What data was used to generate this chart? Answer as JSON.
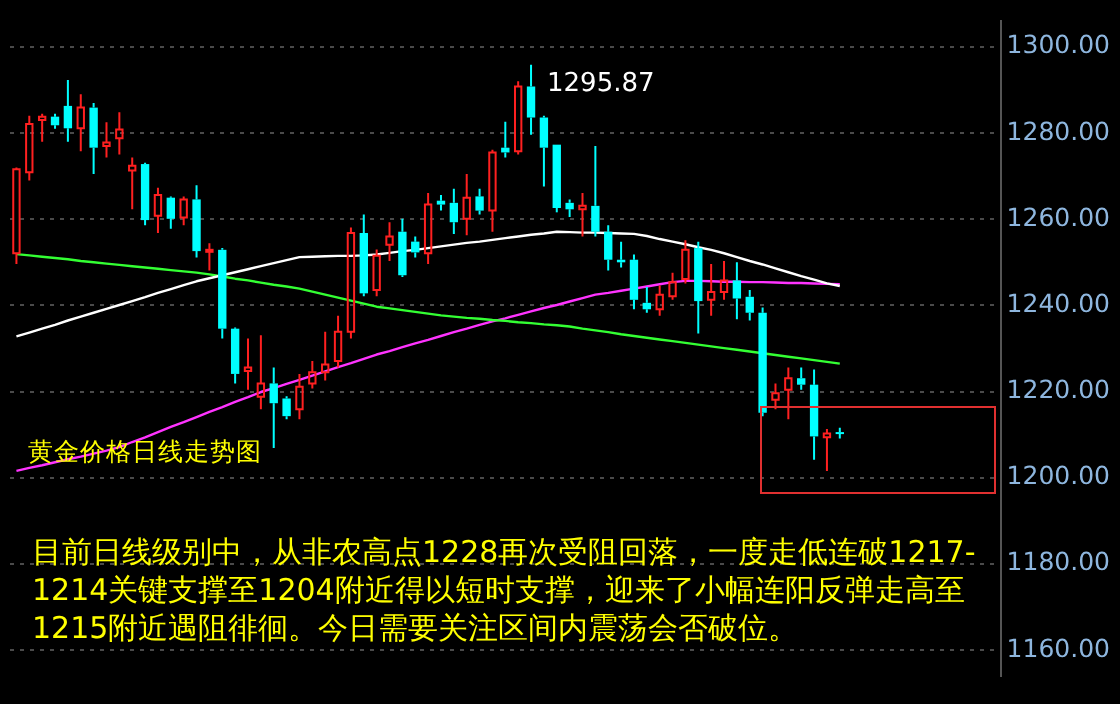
{
  "chart_data": {
    "type": "candlestick",
    "title": "黄金价格日线走势图",
    "annotations": [
      "目前日线级别中，从非农高点1228再次受阻回落，一度走低连破1217-1214关键支撑至1204附近得以短时支撑，迎来了小幅连阳反弹走高至1215附近遇阻徘徊。今日需要关注区间内震荡会否破位。",
      "1295.87"
    ],
    "categories": [
      null,
      null,
      null,
      null,
      null,
      null,
      null,
      null,
      null,
      null,
      null,
      null,
      null,
      null,
      null,
      null,
      null,
      null,
      null,
      null,
      null,
      null,
      null,
      null,
      null,
      null,
      null,
      null,
      null,
      null,
      null,
      null,
      null,
      null,
      null,
      null,
      null,
      null,
      null,
      null,
      null,
      null,
      null,
      null,
      null,
      null,
      null,
      null,
      null,
      null,
      null,
      null,
      null,
      null,
      null,
      null,
      null,
      null,
      null,
      null,
      null,
      null,
      null,
      null,
      null,
      null,
      null,
      null,
      null,
      null,
      null,
      null,
      null,
      null,
      null,
      null,
      null
    ],
    "ohlc": [
      [
        1252.1,
        1272,
        1249.6,
        1271.6
      ],
      [
        1270.9,
        1284,
        1269,
        1282.1
      ],
      [
        1283,
        1284.5,
        1278,
        1283.8
      ],
      [
        1283.8,
        1284.5,
        1281,
        1281.8
      ],
      [
        1286.3,
        1292.3,
        1278,
        1281.1
      ],
      [
        1281.1,
        1289,
        1275.8,
        1285.9
      ],
      [
        1285.9,
        1287,
        1270.5,
        1276.6
      ],
      [
        1277,
        1282.5,
        1274.3,
        1277.8
      ],
      [
        1278.8,
        1284.8,
        1275,
        1280.8
      ],
      [
        1271.3,
        1274.3,
        1262.3,
        1272.4
      ],
      [
        1272.8,
        1273.1,
        1258.6,
        1259.8
      ],
      [
        1260.8,
        1267.3,
        1256.8,
        1265.6
      ],
      [
        1265,
        1265.3,
        1257.8,
        1260.1
      ],
      [
        1260.4,
        1265.3,
        1258.6,
        1264.6
      ],
      [
        1264.6,
        1267.9,
        1251.1,
        1252.6
      ],
      [
        1252.6,
        1254.4,
        1248.1,
        1252.9
      ],
      [
        1252.9,
        1253.3,
        1232.3,
        1234.6
      ],
      [
        1234.6,
        1234.9,
        1221.9,
        1224.1
      ],
      [
        1224.8,
        1232.3,
        1220.4,
        1225.6
      ],
      [
        1218.8,
        1233.1,
        1215.9,
        1221.9
      ],
      [
        1221.9,
        1225.6,
        1206.9,
        1217.3
      ],
      [
        1218.4,
        1218.9,
        1213.6,
        1214.3
      ],
      [
        1215.9,
        1224.1,
        1213.6,
        1221.1
      ],
      [
        1221.9,
        1227.1,
        1220.7,
        1224.5
      ],
      [
        1224.5,
        1233.9,
        1222.6,
        1226.3
      ],
      [
        1227.1,
        1237.6,
        1225.6,
        1233.9
      ],
      [
        1233.9,
        1258.1,
        1232.3,
        1256.8
      ],
      [
        1256.8,
        1261.1,
        1242.1,
        1242.8
      ],
      [
        1243.6,
        1253,
        1242.1,
        1251.5
      ],
      [
        1254.1,
        1259.3,
        1250.3,
        1256
      ],
      [
        1257.1,
        1260.1,
        1246.6,
        1247
      ],
      [
        1254.8,
        1256,
        1251.1,
        1252.3
      ],
      [
        1252.1,
        1266.1,
        1249.6,
        1263.4
      ],
      [
        1264.3,
        1265.6,
        1262,
        1263.4
      ],
      [
        1263.8,
        1267.1,
        1256.6,
        1259.3
      ],
      [
        1260.1,
        1270.5,
        1256.3,
        1265
      ],
      [
        1265.3,
        1267.1,
        1261.1,
        1262
      ],
      [
        1262,
        1276.1,
        1257.1,
        1275.5
      ],
      [
        1276.6,
        1282.6,
        1274.3,
        1275.5
      ],
      [
        1275.8,
        1292,
        1275,
        1290.8
      ],
      [
        1290.8,
        1295.87,
        1279.6,
        1283.6
      ],
      [
        1283.6,
        1284,
        1267.6,
        1276.6
      ],
      [
        1277.3,
        1277.3,
        1261.6,
        1262.6
      ],
      [
        1263.8,
        1264.6,
        1260.5,
        1262.3
      ],
      [
        1262.3,
        1266.1,
        1256,
        1263.1
      ],
      [
        1263.1,
        1277,
        1256,
        1257.1
      ],
      [
        1257.1,
        1258.6,
        1248.1,
        1250.6
      ],
      [
        1250.6,
        1254.8,
        1248.8,
        1250
      ],
      [
        1250.6,
        1251.8,
        1239.1,
        1241.3
      ],
      [
        1240.6,
        1244.3,
        1238.3,
        1239.1
      ],
      [
        1239.1,
        1244.6,
        1237.6,
        1242.5
      ],
      [
        1242.1,
        1247.6,
        1241.3,
        1245.4
      ],
      [
        1246.1,
        1255.1,
        1245.1,
        1252.9
      ],
      [
        1253.3,
        1254.8,
        1233.5,
        1241
      ],
      [
        1241.3,
        1249.6,
        1237.6,
        1243.1
      ],
      [
        1243.1,
        1250.3,
        1241.3,
        1245.8
      ],
      [
        1245.8,
        1250,
        1236.8,
        1241.6
      ],
      [
        1242,
        1243.6,
        1236.5,
        1238.3
      ],
      [
        1238.3,
        1239.5,
        1214.3,
        1215.1
      ],
      [
        1218.1,
        1221.9,
        1215.9,
        1219.6
      ],
      [
        1220.4,
        1225.6,
        1213.6,
        1223.1
      ],
      [
        1223.1,
        1225.6,
        1220.4,
        1221.6
      ],
      [
        1221.6,
        1225.1,
        1204.2,
        1209.6
      ],
      [
        1209.4,
        1211.3,
        1201.6,
        1210.3
      ],
      [
        1210.6,
        1211.6,
        1209.1,
        1210.3
      ],
      null,
      null,
      null,
      null,
      null,
      null,
      null,
      null,
      null,
      null,
      null,
      null
    ],
    "colors": [
      "#ff2020",
      "#ff2020",
      "#ff2020",
      "#00ffff",
      "#00ffff",
      "#ff2020",
      "#00ffff",
      "#ff2020",
      "#ff2020",
      "#ff2020",
      "#00ffff",
      "#ff2020",
      "#00ffff",
      "#ff2020",
      "#00ffff",
      "#ff2020",
      "#00ffff",
      "#00ffff",
      "#ff2020",
      "#ff2020",
      "#00ffff",
      "#00ffff",
      "#ff2020",
      "#ff2020",
      "#ff2020",
      "#ff2020",
      "#ff2020",
      "#00ffff",
      "#ff2020",
      "#ff2020",
      "#00ffff",
      "#00ffff",
      "#ff2020",
      "#00ffff",
      "#00ffff",
      "#ff2020",
      "#00ffff",
      "#ff2020",
      "#00ffff",
      "#ff2020",
      "#00ffff",
      "#00ffff",
      "#00ffff",
      "#00ffff",
      "#ff2020",
      "#00ffff",
      "#00ffff",
      "#00ffff",
      "#00ffff",
      "#00ffff",
      "#ff2020",
      "#ff2020",
      "#ff2020",
      "#00ffff",
      "#ff2020",
      "#ff2020",
      "#00ffff",
      "#00ffff",
      "#00ffff",
      "#ff2020",
      "#ff2020",
      "#00ffff",
      "#00ffff",
      "#ff2020",
      "#00ffff",
      null,
      null,
      null,
      null,
      null,
      null,
      null,
      null,
      null,
      null,
      null,
      null
    ],
    "series": [
      {
        "type": "line",
        "color": "#ffffff",
        "values": [
          1232.8,
          1233.7,
          1234.6,
          1235.5,
          1236.5,
          1237.4,
          1238.3,
          1239.2,
          1240.1,
          1241,
          1241.9,
          1242.9,
          1243.8,
          1244.7,
          1245.6,
          1246.3,
          1247,
          1247.7,
          1248.4,
          1249.1,
          1249.8,
          1250.5,
          1251.2,
          1251.3,
          1251.4,
          1251.5,
          1251.5,
          1251.6,
          1251.8,
          1252.2,
          1252.6,
          1252.9,
          1253.3,
          1253.7,
          1254.1,
          1254.5,
          1254.8,
          1255.2,
          1255.6,
          1256,
          1256.4,
          1256.7,
          1257.1,
          1257,
          1256.9,
          1256.9,
          1256.8,
          1256.7,
          1256.6,
          1256.1,
          1255.4,
          1254.8,
          1254.2,
          1253.5,
          1252.9,
          1252.1,
          1251.2,
          1250.3,
          1249.5,
          1248.6,
          1247.7,
          1246.8,
          1246,
          1245.1,
          1244.5,
          null,
          null,
          null,
          null,
          null,
          null,
          null,
          null,
          null,
          null,
          null,
          null
        ]
      },
      {
        "type": "line",
        "color": "#33ff33",
        "values": [
          1251.9,
          1251.6,
          1251.3,
          1251,
          1250.7,
          1250.3,
          1250,
          1249.7,
          1249.4,
          1249.1,
          1248.8,
          1248.5,
          1248.2,
          1247.9,
          1247.6,
          1247.2,
          1246.7,
          1246.2,
          1245.8,
          1245.3,
          1244.8,
          1244.4,
          1243.9,
          1243.2,
          1242.5,
          1241.8,
          1241.1,
          1240.4,
          1239.7,
          1239.3,
          1238.9,
          1238.5,
          1238.1,
          1237.7,
          1237.4,
          1237.1,
          1236.9,
          1236.6,
          1236.4,
          1236.1,
          1235.9,
          1235.6,
          1235.4,
          1235.1,
          1234.6,
          1234.2,
          1233.8,
          1233.3,
          1232.9,
          1232.5,
          1232.1,
          1231.7,
          1231.3,
          1230.9,
          1230.5,
          1230.1,
          1229.7,
          1229.3,
          1228.9,
          1228.5,
          1228.1,
          1227.7,
          1227.3,
          1226.9,
          1226.5,
          null,
          null,
          null,
          null,
          null,
          null,
          null,
          null,
          null,
          null,
          null,
          null
        ]
      },
      {
        "type": "line",
        "color": "#ff33ff",
        "values": [
          1201.6,
          1202.3,
          1202.9,
          1203.6,
          1204.3,
          1204.9,
          1205.6,
          1206.3,
          1207.1,
          1208.3,
          1209.4,
          1210.6,
          1211.8,
          1212.9,
          1214.1,
          1215.3,
          1216.4,
          1217.6,
          1218.7,
          1219.9,
          1220.8,
          1221.8,
          1222.7,
          1223.7,
          1224.7,
          1225.7,
          1226.6,
          1227.6,
          1228.6,
          1229.4,
          1230.3,
          1231.2,
          1232,
          1232.9,
          1233.8,
          1234.6,
          1235.5,
          1236.3,
          1237,
          1237.8,
          1238.6,
          1239.4,
          1240.1,
          1240.9,
          1241.7,
          1242.5,
          1242.9,
          1243.4,
          1243.9,
          1244.4,
          1244.9,
          1245.4,
          1245.7,
          1245.7,
          1245.6,
          1245.5,
          1245.5,
          1245.4,
          1245.4,
          1245.3,
          1245.2,
          1245.2,
          1245.1,
          1245,
          1244.9,
          null,
          null,
          null,
          null,
          null,
          null,
          null,
          null,
          null,
          null,
          null,
          null
        ]
      }
    ],
    "ylim": [
      1154,
      1306
    ],
    "yticks": [
      {
        "value": 1160,
        "label": "1160.00"
      },
      {
        "value": 1180,
        "label": "1180.00"
      },
      {
        "value": 1200,
        "label": "1200.00"
      },
      {
        "value": 1220,
        "label": "1220.00"
      },
      {
        "value": 1240,
        "label": "1240.00"
      },
      {
        "value": 1260,
        "label": "1260.00"
      },
      {
        "value": 1280,
        "label": "1280.00"
      },
      {
        "value": 1300,
        "label": "1300.00"
      }
    ],
    "grid": "y",
    "tick_labels": "y"
  }
}
